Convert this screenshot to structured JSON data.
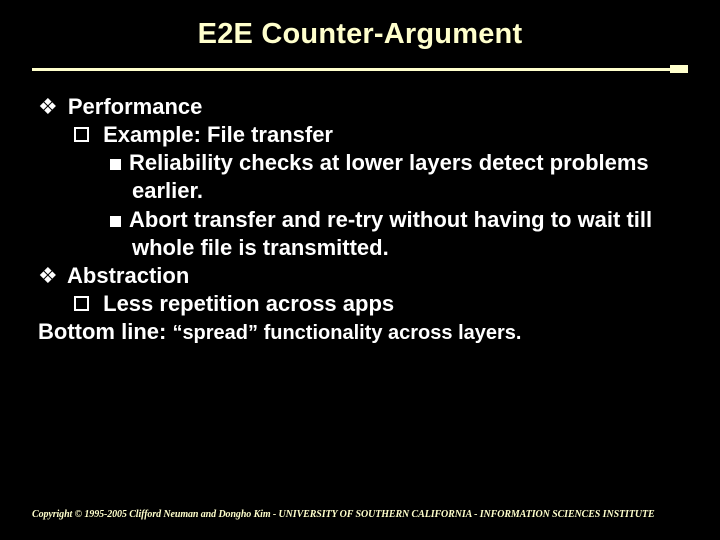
{
  "colors": {
    "background": "#000000",
    "title": "#ffffcc",
    "body_text": "#ffffff",
    "divider": "#ffffcc",
    "footer": "#ffffcc"
  },
  "typography": {
    "title_fontsize": 29,
    "body_fontsize": 22,
    "bottom_small_fontsize": 20,
    "footer_fontsize": 10,
    "title_weight": 900,
    "body_weight": 700
  },
  "title": "E2E Counter-Argument",
  "bullets": {
    "performance": "Performance",
    "example": "Example: File transfer",
    "reliability": "Reliability checks at lower layers detect problems earlier.",
    "abort": "Abort transfer and re-try without having to wait till whole file is transmitted.",
    "abstraction": "Abstraction",
    "less_rep": "Less repetition across apps",
    "bottom_label": "Bottom line: ",
    "bottom_text": "“spread” functionality across layers."
  },
  "footer": "Copyright © 1995-2005 Clifford Neuman and Dongho Kim - UNIVERSITY OF SOUTHERN CALIFORNIA - INFORMATION SCIENCES INSTITUTE"
}
